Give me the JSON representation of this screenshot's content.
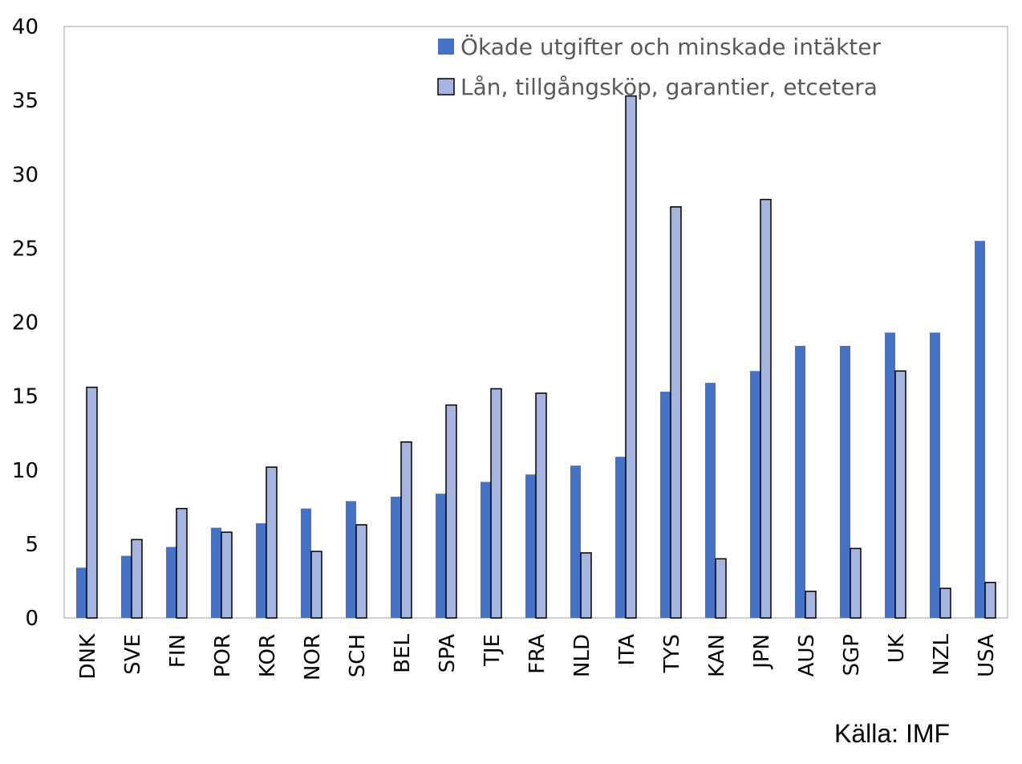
{
  "chart_data": {
    "type": "bar",
    "categories": [
      "DNK",
      "SVE",
      "FIN",
      "POR",
      "KOR",
      "NOR",
      "SCH",
      "BEL",
      "SPA",
      "TJE",
      "FRA",
      "NLD",
      "ITA",
      "TYS",
      "KAN",
      "JPN",
      "AUS",
      "SGP",
      "UK",
      "NZL",
      "USA"
    ],
    "series": [
      {
        "name": "Ökade utgifter och minskade intäkter",
        "color": "#4472C4",
        "values": [
          3.4,
          4.2,
          4.8,
          6.1,
          6.4,
          7.4,
          7.9,
          8.2,
          8.4,
          9.2,
          9.7,
          10.3,
          10.9,
          15.3,
          15.9,
          16.7,
          18.4,
          18.4,
          19.3,
          19.3,
          25.5
        ]
      },
      {
        "name": "Lån, tillgångsköp, garantier, etcetera",
        "color": "#A5B5DF",
        "values": [
          15.6,
          5.3,
          7.4,
          5.8,
          10.2,
          4.5,
          6.3,
          11.9,
          14.4,
          15.5,
          15.2,
          4.4,
          35.3,
          27.8,
          4.0,
          28.3,
          1.8,
          4.7,
          16.7,
          2.0,
          2.4
        ]
      }
    ],
    "ylim": [
      0,
      40
    ],
    "yticks": [
      0,
      5,
      10,
      15,
      20,
      25,
      30,
      35,
      40
    ],
    "legend_position": "top-right",
    "grid": false
  },
  "source_text": "Källa: IMF"
}
